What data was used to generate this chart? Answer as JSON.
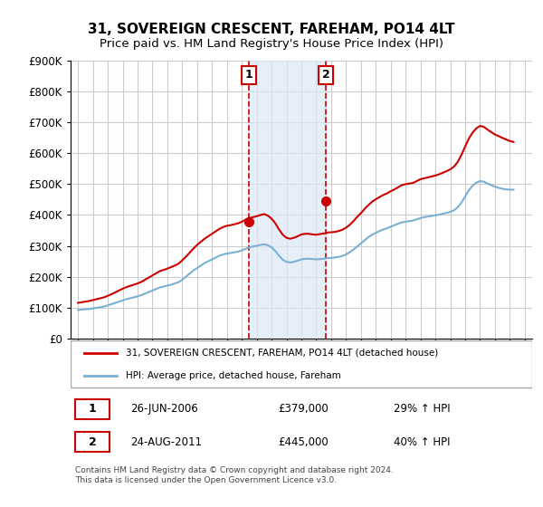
{
  "title": "31, SOVEREIGN CRESCENT, FAREHAM, PO14 4LT",
  "subtitle": "Price paid vs. HM Land Registry's House Price Index (HPI)",
  "title_fontsize": 11,
  "subtitle_fontsize": 9.5,
  "background_color": "#ffffff",
  "plot_bg_color": "#ffffff",
  "grid_color": "#cccccc",
  "red_line_color": "#cc0000",
  "blue_line_color": "#7ab0d4",
  "annotation_bg": "#dce9f5",
  "sale1_date": 2006.49,
  "sale1_price": 379000,
  "sale2_date": 2011.65,
  "sale2_price": 445000,
  "ylabel_left": "",
  "xlabel": "",
  "ylim_min": 0,
  "ylim_max": 900000,
  "xlim_min": 1994.5,
  "xlim_max": 2025.5,
  "legend_label_red": "31, SOVEREIGN CRESCENT, FAREHAM, PO14 4LT (detached house)",
  "legend_label_blue": "HPI: Average price, detached house, Fareham",
  "table_row1_num": "1",
  "table_row1_date": "26-JUN-2006",
  "table_row1_price": "£379,000",
  "table_row1_hpi": "29% ↑ HPI",
  "table_row2_num": "2",
  "table_row2_date": "24-AUG-2011",
  "table_row2_price": "£445,000",
  "table_row2_hpi": "40% ↑ HPI",
  "footer": "Contains HM Land Registry data © Crown copyright and database right 2024.\nThis data is licensed under the Open Government Licence v3.0.",
  "hpi_years": [
    1995,
    1995.25,
    1995.5,
    1995.75,
    1996,
    1996.25,
    1996.5,
    1996.75,
    1997,
    1997.25,
    1997.5,
    1997.75,
    1998,
    1998.25,
    1998.5,
    1998.75,
    1999,
    1999.25,
    1999.5,
    1999.75,
    2000,
    2000.25,
    2000.5,
    2000.75,
    2001,
    2001.25,
    2001.5,
    2001.75,
    2002,
    2002.25,
    2002.5,
    2002.75,
    2003,
    2003.25,
    2003.5,
    2003.75,
    2004,
    2004.25,
    2004.5,
    2004.75,
    2005,
    2005.25,
    2005.5,
    2005.75,
    2006,
    2006.25,
    2006.5,
    2006.75,
    2007,
    2007.25,
    2007.5,
    2007.75,
    2008,
    2008.25,
    2008.5,
    2008.75,
    2009,
    2009.25,
    2009.5,
    2009.75,
    2010,
    2010.25,
    2010.5,
    2010.75,
    2011,
    2011.25,
    2011.5,
    2011.75,
    2012,
    2012.25,
    2012.5,
    2012.75,
    2013,
    2013.25,
    2013.5,
    2013.75,
    2014,
    2014.25,
    2014.5,
    2014.75,
    2015,
    2015.25,
    2015.5,
    2015.75,
    2016,
    2016.25,
    2016.5,
    2016.75,
    2017,
    2017.25,
    2017.5,
    2017.75,
    2018,
    2018.25,
    2018.5,
    2018.75,
    2019,
    2019.25,
    2019.5,
    2019.75,
    2020,
    2020.25,
    2020.5,
    2020.75,
    2021,
    2021.25,
    2021.5,
    2021.75,
    2022,
    2022.25,
    2022.5,
    2022.75,
    2023,
    2023.25,
    2023.5,
    2023.75,
    2024,
    2024.25
  ],
  "hpi_values": [
    92000,
    93000,
    94000,
    95000,
    97000,
    99000,
    101000,
    103000,
    107000,
    111000,
    115000,
    119000,
    123000,
    127000,
    130000,
    133000,
    136000,
    140000,
    145000,
    150000,
    155000,
    160000,
    165000,
    168000,
    171000,
    174000,
    178000,
    182000,
    190000,
    200000,
    210000,
    220000,
    228000,
    236000,
    244000,
    250000,
    256000,
    262000,
    268000,
    272000,
    275000,
    277000,
    279000,
    281000,
    285000,
    290000,
    295000,
    298000,
    300000,
    303000,
    305000,
    302000,
    295000,
    283000,
    268000,
    255000,
    248000,
    246000,
    248000,
    252000,
    256000,
    258000,
    258000,
    257000,
    256000,
    257000,
    258000,
    260000,
    261000,
    262000,
    264000,
    267000,
    272000,
    279000,
    288000,
    298000,
    308000,
    318000,
    328000,
    336000,
    342000,
    348000,
    353000,
    357000,
    362000,
    367000,
    372000,
    376000,
    378000,
    380000,
    382000,
    386000,
    390000,
    393000,
    395000,
    397000,
    399000,
    401000,
    404000,
    407000,
    410000,
    415000,
    425000,
    440000,
    460000,
    480000,
    495000,
    505000,
    510000,
    508000,
    502000,
    497000,
    492000,
    488000,
    485000,
    483000,
    482000,
    482000
  ],
  "red_years": [
    1995,
    1995.25,
    1995.5,
    1995.75,
    1996,
    1996.25,
    1996.5,
    1996.75,
    1997,
    1997.25,
    1997.5,
    1997.75,
    1998,
    1998.25,
    1998.5,
    1998.75,
    1999,
    1999.25,
    1999.5,
    1999.75,
    2000,
    2000.25,
    2000.5,
    2000.75,
    2001,
    2001.25,
    2001.5,
    2001.75,
    2002,
    2002.25,
    2002.5,
    2002.75,
    2003,
    2003.25,
    2003.5,
    2003.75,
    2004,
    2004.25,
    2004.5,
    2004.75,
    2005,
    2005.25,
    2005.5,
    2005.75,
    2006,
    2006.25,
    2006.5,
    2006.75,
    2007,
    2007.25,
    2007.5,
    2007.75,
    2008,
    2008.25,
    2008.5,
    2008.75,
    2009,
    2009.25,
    2009.5,
    2009.75,
    2010,
    2010.25,
    2010.5,
    2010.75,
    2011,
    2011.25,
    2011.5,
    2011.75,
    2012,
    2012.25,
    2012.5,
    2012.75,
    2013,
    2013.25,
    2013.5,
    2013.75,
    2014,
    2014.25,
    2014.5,
    2014.75,
    2015,
    2015.25,
    2015.5,
    2015.75,
    2016,
    2016.25,
    2016.5,
    2016.75,
    2017,
    2017.25,
    2017.5,
    2017.75,
    2018,
    2018.25,
    2018.5,
    2018.75,
    2019,
    2019.25,
    2019.5,
    2019.75,
    2020,
    2020.25,
    2020.5,
    2020.75,
    2021,
    2021.25,
    2021.5,
    2021.75,
    2022,
    2022.25,
    2022.5,
    2022.75,
    2023,
    2023.25,
    2023.5,
    2023.75,
    2024,
    2024.25
  ],
  "red_values": [
    115000,
    117000,
    119000,
    121000,
    124000,
    127000,
    130000,
    133000,
    138000,
    143000,
    149000,
    155000,
    161000,
    166000,
    170000,
    174000,
    178000,
    183000,
    190000,
    197000,
    204000,
    211000,
    218000,
    222000,
    226000,
    231000,
    236000,
    242000,
    253000,
    265000,
    278000,
    291000,
    303000,
    313000,
    323000,
    331000,
    339000,
    347000,
    355000,
    361000,
    365000,
    367000,
    370000,
    373000,
    378000,
    385000,
    390000,
    393000,
    396000,
    400000,
    403000,
    398000,
    388000,
    373000,
    353000,
    336000,
    326000,
    323000,
    326000,
    331000,
    337000,
    339000,
    339000,
    337000,
    336000,
    338000,
    340000,
    343000,
    344000,
    345000,
    348000,
    352000,
    359000,
    368000,
    380000,
    394000,
    406000,
    420000,
    432000,
    443000,
    451000,
    458000,
    465000,
    470000,
    477000,
    483000,
    490000,
    497000,
    500000,
    502000,
    504000,
    510000,
    516000,
    519000,
    522000,
    525000,
    528000,
    532000,
    537000,
    542000,
    548000,
    557000,
    572000,
    595000,
    622000,
    648000,
    667000,
    681000,
    689000,
    686000,
    677000,
    669000,
    661000,
    656000,
    650000,
    645000,
    640000,
    637000
  ]
}
